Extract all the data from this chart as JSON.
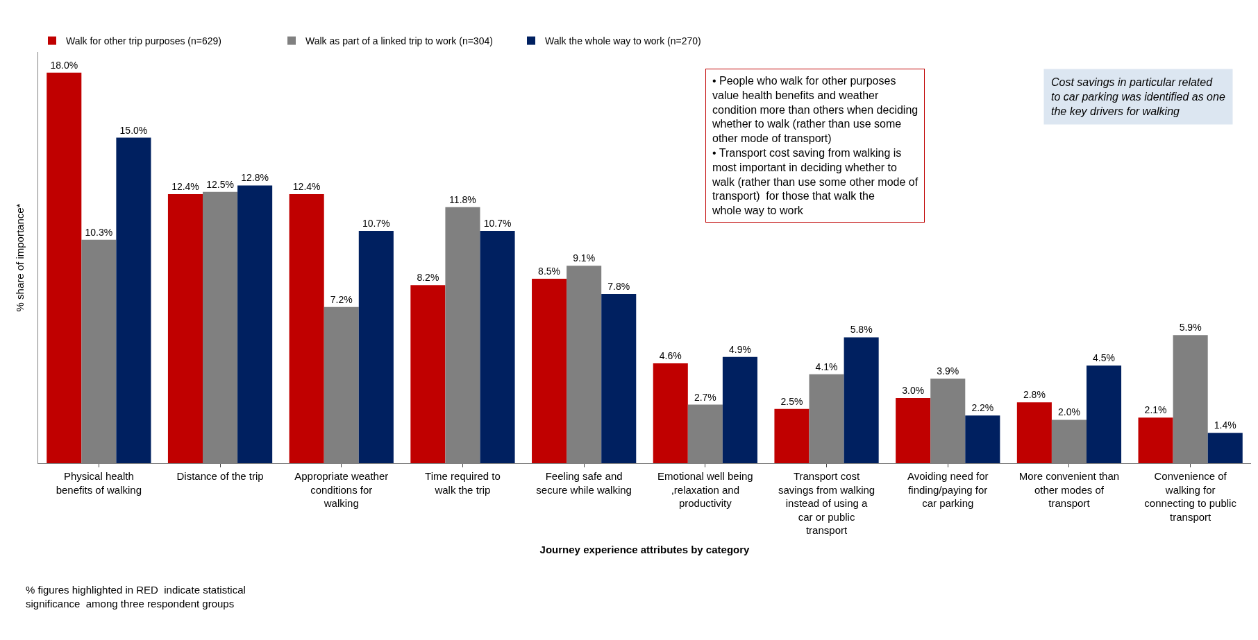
{
  "chart_data": {
    "type": "bar",
    "xlabel": "Journey experience attributes by category",
    "ylabel": "% share of importance*",
    "categories": [
      "Physical health benefits of walking",
      "Distance of the trip",
      "Appropriate weather conditions for walking",
      "Time required to walk the trip",
      "Feeling safe and secure while walking",
      "Emotional well being ,relaxation and productivity",
      "Transport cost savings from walking instead of using a car or public transport",
      "Avoiding need for finding/paying for car parking",
      "More convenient than other modes of transport",
      "Convenience of walking for connecting to public transport"
    ],
    "series": [
      {
        "name": "Walk for other trip purposes (n=629)",
        "color": "#c00000",
        "values": [
          18.0,
          12.4,
          12.4,
          8.2,
          8.5,
          4.6,
          2.5,
          3.0,
          2.8,
          2.1
        ],
        "value_labels": [
          "18.0%",
          "12.4%",
          "12.4%",
          "8.2%",
          "8.5%",
          "4.6%",
          "2.5%",
          "3.0%",
          "2.8%",
          "2.1%"
        ]
      },
      {
        "name": "Walk as part of a linked trip to work (n=304)",
        "color": "#808080",
        "values": [
          10.3,
          12.5,
          7.2,
          11.8,
          9.1,
          2.7,
          4.1,
          3.9,
          2.0,
          5.9
        ],
        "value_labels": [
          "10.3%",
          "12.5%",
          "7.2%",
          "11.8%",
          "9.1%",
          "2.7%",
          "4.1%",
          "3.9%",
          "2.0%",
          "5.9%"
        ]
      },
      {
        "name": "Walk the whole way to work (n=270)",
        "color": "#002060",
        "values": [
          15.0,
          12.8,
          10.7,
          10.7,
          7.8,
          4.9,
          5.8,
          2.2,
          4.5,
          1.4
        ],
        "value_labels": [
          "15.0%",
          "12.8%",
          "10.7%",
          "10.7%",
          "7.8%",
          "4.9%",
          "5.8%",
          "2.2%",
          "4.5%",
          "1.4%"
        ]
      }
    ],
    "annotations": [
      "• People who walk for other purposes value health benefits and weather condition more than others when deciding whether to walk (rather than use some other mode of transport)",
      "• Transport cost saving from walking is most important in deciding whether to walk (rather than use some other mode of transport)  for those that walk the whole way to work",
      "Cost savings in particular related to car parking was identified as one the key drivers for walking",
      "% figures highlighted in RED  indicate statistical significance  among three respondent groups"
    ],
    "legend": "top left"
  }
}
